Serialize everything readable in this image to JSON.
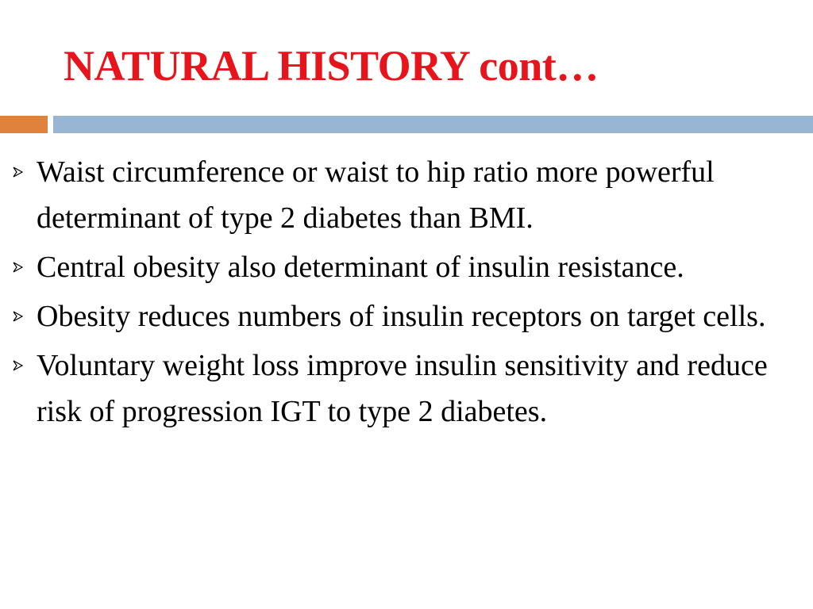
{
  "slide": {
    "title": "NATURAL HISTORY cont…",
    "colors": {
      "title": "#e8141c",
      "accent_left": "#e0823c",
      "accent_right": "#98b6d4",
      "bullet_marker": "#000000"
    },
    "bullet_icon": "chevron-right-arrowhead-icon",
    "bullets": [
      "Waist circumference or waist to hip ratio more powerful determinant of type 2 diabetes than BMI.",
      "Central obesity also determinant of insulin resistance.",
      "Obesity reduces numbers of insulin receptors on target cells.",
      "Voluntary weight loss improve insulin sensitivity and reduce risk of progression IGT to type 2 diabetes."
    ]
  }
}
